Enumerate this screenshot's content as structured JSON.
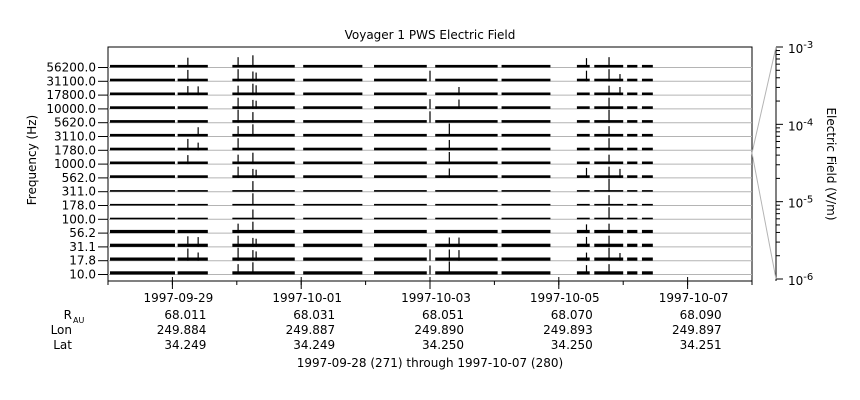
{
  "chart_data": {
    "type": "line",
    "title": "Voyager 1 PWS Electric Field",
    "ylabel": "Frequency (Hz)",
    "y2label": "Electric Field (V/m)",
    "channels": [
      "56200.0",
      "31100.0",
      "17800.0",
      "10000.0",
      "5620.0",
      "3110.0",
      "1780.0",
      "1000.0",
      "562.0",
      "311.0",
      "178.0",
      "100.0",
      "56.2",
      "31.1",
      "17.8",
      "10.0"
    ],
    "x_date_ticks": [
      "1997-09-29",
      "1997-10-01",
      "1997-10-03",
      "1997-10-05",
      "1997-10-07"
    ],
    "ephemeris": {
      "rows": [
        {
          "label": "R",
          "sub": "AU",
          "values": [
            "68.011",
            "68.031",
            "68.051",
            "68.070",
            "68.090"
          ]
        },
        {
          "label": "Lon",
          "sub": "",
          "values": [
            "249.884",
            "249.887",
            "249.890",
            "249.893",
            "249.897"
          ]
        },
        {
          "label": "Lat",
          "sub": "",
          "values": [
            "34.249",
            "34.249",
            "34.250",
            "34.250",
            "34.251"
          ]
        }
      ]
    },
    "date_range_label": "1997-09-28 (271) through 1997-10-07 (280)",
    "xlim": [
      "1997-09-28",
      "1997-10-08"
    ],
    "colorbar": {
      "scale": "log",
      "range": [
        "1e-6",
        "1e-3"
      ],
      "ticks": [
        {
          "value": 0.001,
          "base": "10",
          "exp": "-3"
        },
        {
          "value": 0.0001,
          "base": "10",
          "exp": "-4"
        },
        {
          "value": 1e-05,
          "base": "10",
          "exp": "-5"
        },
        {
          "value": 1e-06,
          "base": "10",
          "exp": "-6"
        }
      ]
    },
    "data_segments_days": [
      [
        0.0,
        1.04
      ],
      [
        1.05,
        1.55
      ],
      [
        1.9,
        2.9
      ],
      [
        3.0,
        3.95
      ],
      [
        4.1,
        4.95
      ],
      [
        5.05,
        6.05
      ],
      [
        6.08,
        6.87
      ],
      [
        7.25,
        7.48
      ],
      [
        7.52,
        8.0
      ],
      [
        8.03,
        8.22
      ],
      [
        8.26,
        8.46
      ]
    ],
    "spikes": [
      {
        "day": 1.24,
        "channels": [
          0,
          1,
          2,
          6,
          7,
          13,
          14
        ],
        "strength": 0.9
      },
      {
        "day": 1.4,
        "channels": [
          2,
          5,
          6,
          13,
          14
        ],
        "strength": 0.6
      },
      {
        "day": 2.02,
        "channels": [
          0,
          1,
          2,
          3,
          4,
          5,
          6,
          7,
          8,
          12,
          13,
          14,
          15
        ],
        "strength": 1.0
      },
      {
        "day": 2.25,
        "channels": [
          0,
          1,
          2,
          3,
          4,
          5,
          7,
          8,
          9,
          10,
          11,
          12,
          13,
          14,
          15
        ],
        "strength": 0.9
      },
      {
        "day": 2.3,
        "channels": [
          1,
          2,
          3,
          8,
          13,
          14
        ],
        "strength": 0.6
      },
      {
        "day": 5.0,
        "channels": [
          1,
          3,
          4,
          14,
          15
        ],
        "strength": 0.9
      },
      {
        "day": 5.3,
        "channels": [
          5,
          6,
          7,
          8,
          13,
          14,
          15
        ],
        "strength": 1.0
      },
      {
        "day": 5.45,
        "channels": [
          2,
          3,
          13,
          14
        ],
        "strength": 0.7
      },
      {
        "day": 7.43,
        "channels": [
          0,
          1,
          8,
          12,
          13,
          14,
          15
        ],
        "strength": 0.7
      },
      {
        "day": 7.78,
        "channels": [
          0,
          1,
          2,
          3,
          4,
          5,
          6,
          7,
          8,
          9,
          10,
          11,
          12,
          13,
          14,
          15
        ],
        "strength": 1.0
      },
      {
        "day": 7.95,
        "channels": [
          1,
          2,
          8,
          14
        ],
        "strength": 0.5
      }
    ]
  }
}
